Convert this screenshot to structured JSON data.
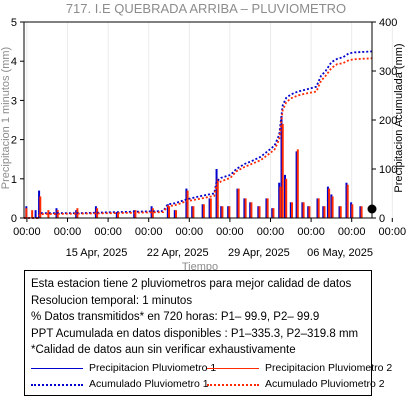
{
  "chart_data": {
    "type": "line",
    "title": "717. I.E QUEBRADA ARRIBA – PLUVIOMETRO",
    "xlabel": "Tiempo",
    "ylabel": "Precipitacion 1 minutos (mm)",
    "y2label": "Precipitacion Acumulada (mm)",
    "ylim": [
      0,
      5
    ],
    "y2lim": [
      0,
      400
    ],
    "yticks": [
      "0",
      "1",
      "2",
      "3",
      "4",
      "5"
    ],
    "y2ticks": [
      "0",
      "100",
      "200",
      "300",
      "400"
    ],
    "xticks_top": [
      "00:00",
      "00:00",
      "00:00",
      "00:00",
      "00:00",
      "00:00",
      "00:00",
      "00:00",
      "00:00",
      "00:00"
    ],
    "xticks_bottom": [
      "15 Apr, 2025",
      "22 Apr, 2025",
      "29 Apr, 2025",
      "06 May, 2025"
    ],
    "x_start_day": 8,
    "x_end_day": 38,
    "series": [
      {
        "name": "Precipitacion Pluviometro 1",
        "color": "#0000cc",
        "style": "solid-bars",
        "points": [
          [
            8.2,
            0.3
          ],
          [
            9.0,
            0.2
          ],
          [
            9.3,
            0.7
          ],
          [
            10.8,
            0.25
          ],
          [
            12.5,
            0.2
          ],
          [
            14.2,
            0.3
          ],
          [
            16.0,
            0.15
          ],
          [
            17.5,
            0.2
          ],
          [
            19.0,
            0.3
          ],
          [
            20.4,
            0.35
          ],
          [
            21.0,
            0.2
          ],
          [
            22.0,
            0.75
          ],
          [
            22.5,
            0.3
          ],
          [
            23.4,
            0.35
          ],
          [
            24.0,
            0.5
          ],
          [
            24.6,
            1.25
          ],
          [
            25.0,
            0.3
          ],
          [
            25.6,
            0.3
          ],
          [
            26.4,
            0.75
          ],
          [
            27.0,
            0.5
          ],
          [
            27.5,
            0.4
          ],
          [
            28.2,
            0.3
          ],
          [
            28.9,
            0.5
          ],
          [
            29.4,
            0.25
          ],
          [
            30.0,
            0.9
          ],
          [
            30.2,
            2.6
          ],
          [
            30.5,
            1.1
          ],
          [
            31.0,
            0.4
          ],
          [
            31.5,
            1.7
          ],
          [
            32.0,
            0.4
          ],
          [
            32.5,
            0.3
          ],
          [
            33.3,
            0.5
          ],
          [
            33.8,
            0.3
          ],
          [
            34.2,
            0.8
          ],
          [
            34.5,
            0.6
          ],
          [
            35.2,
            0.3
          ],
          [
            35.8,
            0.9
          ],
          [
            36.2,
            0.4
          ],
          [
            37.0,
            0.3
          ]
        ]
      },
      {
        "name": "Precipitacion Pluviometro 2",
        "color": "#ff2a00",
        "style": "solid-bars",
        "points": [
          [
            8.1,
            0.25
          ],
          [
            8.6,
            0.2
          ],
          [
            9.3,
            0.55
          ],
          [
            10.0,
            0.2
          ],
          [
            10.8,
            0.2
          ],
          [
            12.5,
            0.25
          ],
          [
            14.2,
            0.25
          ],
          [
            16.0,
            0.15
          ],
          [
            17.5,
            0.2
          ],
          [
            19.0,
            0.25
          ],
          [
            20.4,
            0.3
          ],
          [
            21.0,
            0.2
          ],
          [
            22.0,
            0.7
          ],
          [
            22.5,
            0.3
          ],
          [
            23.4,
            0.35
          ],
          [
            24.0,
            0.5
          ],
          [
            24.6,
            1.0
          ],
          [
            25.0,
            0.3
          ],
          [
            25.6,
            0.3
          ],
          [
            26.4,
            0.75
          ],
          [
            27.0,
            0.5
          ],
          [
            27.5,
            0.4
          ],
          [
            28.2,
            0.3
          ],
          [
            28.9,
            0.5
          ],
          [
            29.4,
            0.25
          ],
          [
            30.0,
            0.8
          ],
          [
            30.2,
            2.4
          ],
          [
            30.5,
            1.0
          ],
          [
            31.0,
            0.4
          ],
          [
            31.5,
            1.75
          ],
          [
            32.0,
            0.4
          ],
          [
            32.5,
            0.3
          ],
          [
            33.3,
            0.5
          ],
          [
            33.8,
            0.3
          ],
          [
            34.2,
            0.75
          ],
          [
            34.5,
            0.55
          ],
          [
            35.2,
            0.3
          ],
          [
            35.8,
            0.85
          ],
          [
            36.2,
            0.35
          ],
          [
            37.0,
            0.3
          ]
        ]
      },
      {
        "name": "Acumulado Pluviometro 1",
        "color": "#0000cc",
        "style": "dotted",
        "axis": "y2",
        "points": [
          [
            8.0,
            0
          ],
          [
            9.2,
            0
          ],
          [
            9.4,
            10
          ],
          [
            13.0,
            10
          ],
          [
            16.0,
            12
          ],
          [
            20.0,
            14
          ],
          [
            20.4,
            28
          ],
          [
            21.0,
            30
          ],
          [
            22.0,
            38
          ],
          [
            23.3,
            45
          ],
          [
            24.4,
            50
          ],
          [
            24.6,
            75
          ],
          [
            25.0,
            82
          ],
          [
            25.8,
            88
          ],
          [
            26.3,
            100
          ],
          [
            27.0,
            110
          ],
          [
            27.8,
            118
          ],
          [
            28.4,
            125
          ],
          [
            29.2,
            140
          ],
          [
            29.6,
            148
          ],
          [
            30.0,
            170
          ],
          [
            30.3,
            230
          ],
          [
            30.6,
            245
          ],
          [
            31.0,
            252
          ],
          [
            31.6,
            258
          ],
          [
            32.3,
            262
          ],
          [
            33.2,
            268
          ],
          [
            33.6,
            290
          ],
          [
            34.0,
            300
          ],
          [
            34.5,
            318
          ],
          [
            35.0,
            325
          ],
          [
            35.5,
            328
          ],
          [
            36.0,
            336
          ],
          [
            36.5,
            338
          ],
          [
            38.0,
            340
          ]
        ]
      },
      {
        "name": "Acumulado Pluviometro 2",
        "color": "#ff2a00",
        "style": "dotted",
        "axis": "y2",
        "points": [
          [
            8.0,
            0
          ],
          [
            9.2,
            0
          ],
          [
            9.4,
            8
          ],
          [
            13.0,
            9
          ],
          [
            16.0,
            10
          ],
          [
            20.0,
            12
          ],
          [
            20.4,
            24
          ],
          [
            21.0,
            26
          ],
          [
            22.0,
            34
          ],
          [
            23.3,
            40
          ],
          [
            24.4,
            45
          ],
          [
            24.6,
            68
          ],
          [
            25.0,
            75
          ],
          [
            25.8,
            82
          ],
          [
            26.3,
            95
          ],
          [
            27.0,
            104
          ],
          [
            27.8,
            112
          ],
          [
            28.4,
            118
          ],
          [
            29.2,
            132
          ],
          [
            29.6,
            140
          ],
          [
            30.0,
            160
          ],
          [
            30.3,
            220
          ],
          [
            30.6,
            236
          ],
          [
            31.0,
            244
          ],
          [
            31.6,
            250
          ],
          [
            32.3,
            254
          ],
          [
            33.2,
            258
          ],
          [
            33.6,
            280
          ],
          [
            34.0,
            290
          ],
          [
            34.5,
            306
          ],
          [
            35.0,
            314
          ],
          [
            35.5,
            316
          ],
          [
            36.0,
            322
          ],
          [
            36.5,
            324
          ],
          [
            38.0,
            326
          ]
        ]
      }
    ]
  },
  "info": {
    "lines": [
      "Esta estacion tiene 2 pluviometros para mejor calidad de datos",
      "Resolucion temporal: 1 minutos",
      "% Datos transmitidos* en 720 horas: P1– 99.9, P2– 99.9",
      "PPT Acumulada en datos disponibles : P1–335.3, P2–319.8 mm",
      "*Calidad de datos aun sin verificar exhaustivamente"
    ]
  },
  "legend": [
    {
      "label": "Precipitacion Pluviometro 1",
      "color": "#0000cc",
      "dash": "solid"
    },
    {
      "label": "Precipitacion Pluviometro 2",
      "color": "#ff2a00",
      "dash": "solid"
    },
    {
      "label": "Acumulado Pluviometro 1",
      "color": "#0000cc",
      "dash": "dotted"
    },
    {
      "label": "Acumulado Pluviometro 2",
      "color": "#ff2a00",
      "dash": "dotted"
    }
  ]
}
